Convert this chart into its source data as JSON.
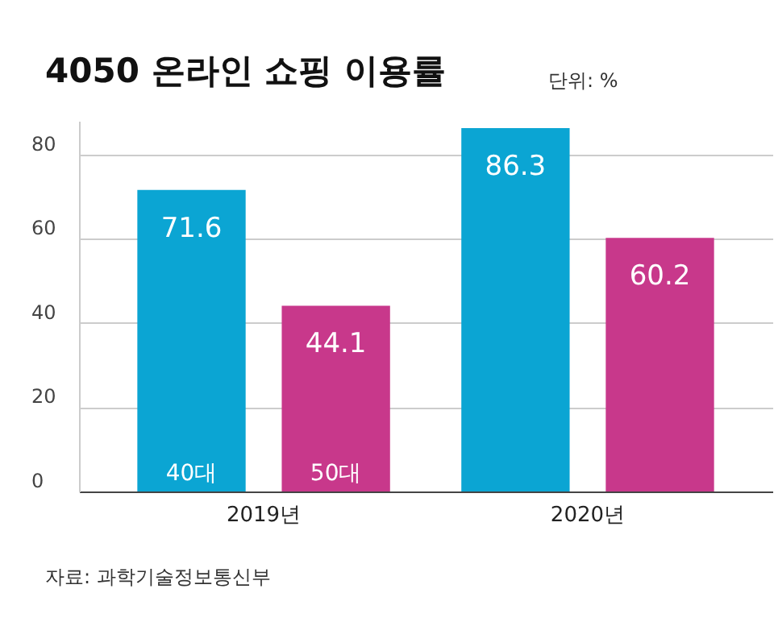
{
  "chart_data": {
    "type": "bar",
    "title": "4050 온라인 쇼핑 이용률",
    "categories": [
      "2019년",
      "2020년"
    ],
    "series": [
      {
        "name": "40대",
        "color": "#0ba5d3",
        "values": [
          71.6,
          86.3
        ]
      },
      {
        "name": "50대",
        "color": "#c8388b",
        "values": [
          44.1,
          60.2
        ]
      }
    ],
    "ylim": [
      0,
      88
    ],
    "yticks": [
      0,
      20,
      40,
      60,
      80
    ],
    "grid": "y",
    "legend": false,
    "data_labels": true,
    "annotations": [
      "단위: %",
      "자료: 과학기술정보통신부"
    ]
  }
}
